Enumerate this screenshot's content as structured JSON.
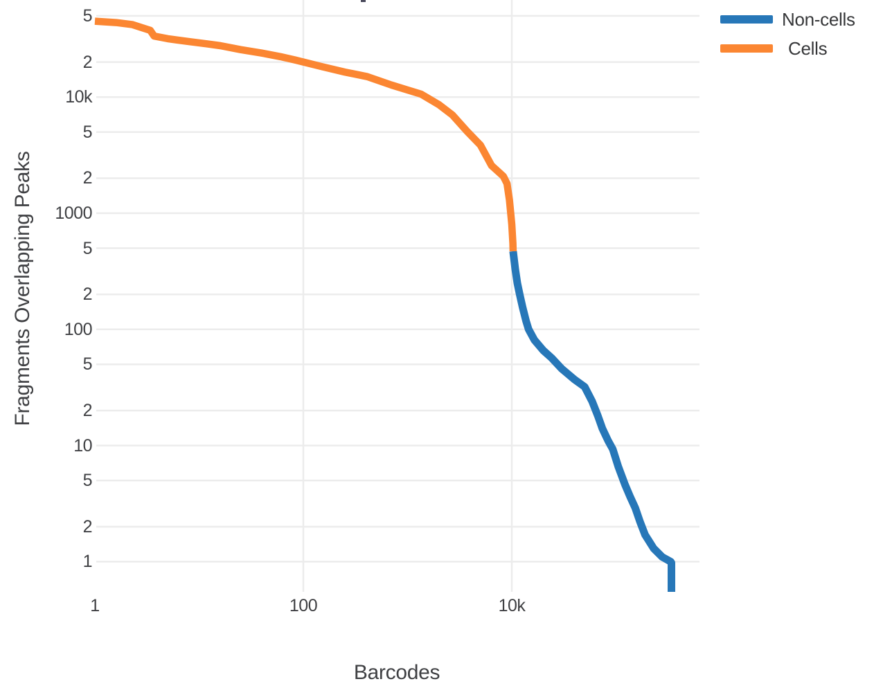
{
  "chart_data": {
    "type": "line",
    "title": "",
    "xlabel": "Barcodes",
    "ylabel": "Fragments Overlapping Peaks",
    "x_scale": "log",
    "y_scale": "log",
    "xlim": [
      1,
      630000
    ],
    "ylim": [
      0.53,
      70000
    ],
    "grid": true,
    "grid_color": "#ececec",
    "background_color": "#ffffff",
    "text_color": "#3f4043",
    "x_ticks": [
      {
        "label": "1",
        "value": 1
      },
      {
        "label": "100",
        "value": 100
      },
      {
        "label": "10k",
        "value": 10000
      }
    ],
    "x_grid_values": [
      100,
      10000
    ],
    "y_ticks": [
      {
        "label": "5",
        "value": 50000
      },
      {
        "label": "2",
        "value": 20000
      },
      {
        "label": "10k",
        "value": 10000
      },
      {
        "label": "5",
        "value": 5000
      },
      {
        "label": "2",
        "value": 2000
      },
      {
        "label": "1000",
        "value": 1000
      },
      {
        "label": "5",
        "value": 500
      },
      {
        "label": "2",
        "value": 200
      },
      {
        "label": "100",
        "value": 100
      },
      {
        "label": "5",
        "value": 50
      },
      {
        "label": "2",
        "value": 20
      },
      {
        "label": "10",
        "value": 10
      },
      {
        "label": "5",
        "value": 5
      },
      {
        "label": "2",
        "value": 2
      },
      {
        "label": "1",
        "value": 1
      }
    ],
    "legend": {
      "position": "top-right",
      "entries": [
        {
          "label": "Non-cells",
          "color": "#2777b8"
        },
        {
          "label": "Cells",
          "color": "#fb8632"
        }
      ]
    },
    "series": [
      {
        "name": "Non-cells",
        "color": "#2777b8",
        "line_width": 11,
        "points": [
          [
            10300,
            470
          ],
          [
            10800,
            330
          ],
          [
            11300,
            250
          ],
          [
            11900,
            200
          ],
          [
            12700,
            155
          ],
          [
            13700,
            118
          ],
          [
            14500,
            100
          ],
          [
            16500,
            81
          ],
          [
            20000,
            66
          ],
          [
            24000,
            57
          ],
          [
            30000,
            46
          ],
          [
            40000,
            37
          ],
          [
            50000,
            32
          ],
          [
            59000,
            24
          ],
          [
            67000,
            18
          ],
          [
            74000,
            14
          ],
          [
            84000,
            11
          ],
          [
            93000,
            9.3
          ],
          [
            105000,
            6.6
          ],
          [
            122000,
            4.6
          ],
          [
            137000,
            3.6
          ],
          [
            153000,
            2.9
          ],
          [
            170000,
            2.2
          ],
          [
            190000,
            1.7
          ],
          [
            230000,
            1.3
          ],
          [
            277000,
            1.1
          ],
          [
            335000,
            1.0
          ],
          [
            340000,
            0.98
          ],
          [
            340000,
            0.55
          ]
        ]
      },
      {
        "name": "Cells",
        "color": "#fb8632",
        "line_width": 10.5,
        "points": [
          [
            1,
            45000
          ],
          [
            1.6,
            43800
          ],
          [
            2.3,
            42000
          ],
          [
            3.4,
            37500
          ],
          [
            3.7,
            33500
          ],
          [
            5,
            31800
          ],
          [
            8,
            30000
          ],
          [
            12,
            28700
          ],
          [
            16,
            27700
          ],
          [
            25,
            25600
          ],
          [
            40,
            23900
          ],
          [
            60,
            22300
          ],
          [
            84,
            20800
          ],
          [
            150,
            18300
          ],
          [
            250,
            16400
          ],
          [
            410,
            15000
          ],
          [
            700,
            12700
          ],
          [
            1000,
            11500
          ],
          [
            1350,
            10600
          ],
          [
            2000,
            8600
          ],
          [
            2700,
            7000
          ],
          [
            3700,
            5100
          ],
          [
            5000,
            3860
          ],
          [
            6400,
            2570
          ],
          [
            8300,
            2080
          ],
          [
            9000,
            1800
          ],
          [
            9500,
            1300
          ],
          [
            10000,
            800
          ],
          [
            10250,
            550
          ],
          [
            10300,
            470
          ]
        ]
      }
    ]
  }
}
